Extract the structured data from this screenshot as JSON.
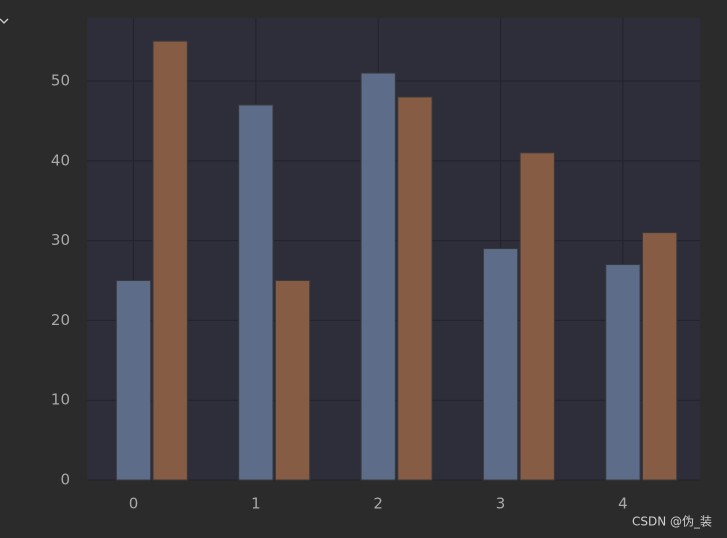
{
  "chart_data": {
    "type": "bar",
    "x": [
      0,
      1,
      2,
      3,
      4
    ],
    "series": [
      {
        "color": "#5d6d89",
        "values": [
          25,
          47,
          51,
          29,
          27
        ]
      },
      {
        "color": "#875c45",
        "values": [
          55,
          25,
          48,
          41,
          31
        ]
      }
    ],
    "xlim": [
      -0.38,
      4.63
    ],
    "xticks": [
      0,
      1,
      2,
      3,
      4
    ],
    "ylim": [
      0,
      57.9
    ],
    "yticks": [
      0,
      10,
      20,
      30,
      40,
      50
    ],
    "grid": true
  },
  "watermark": "CSDN @伪_装"
}
